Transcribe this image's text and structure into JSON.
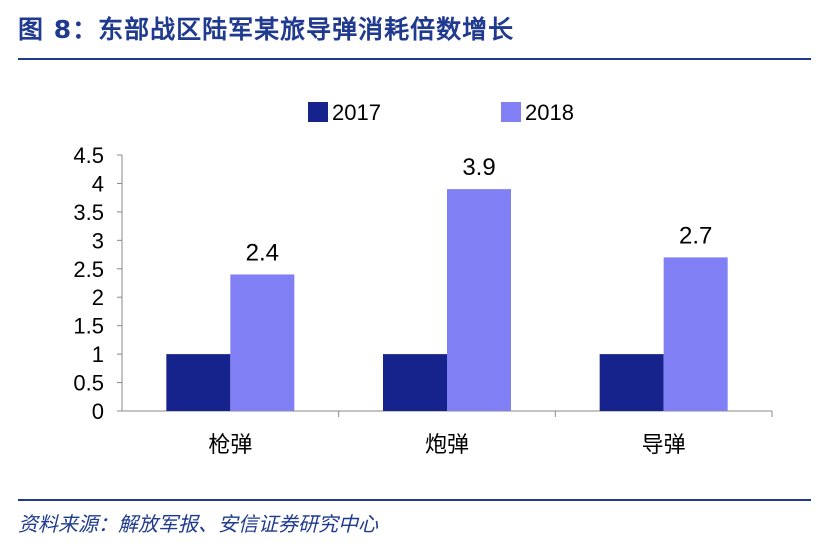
{
  "header": {
    "title": "图 8：东部战区陆军某旅导弹消耗倍数增长"
  },
  "footer": {
    "source": "资料来源：解放军报、安信证券研究中心"
  },
  "colors": {
    "accent": "#1f3a8f",
    "series_2017": "#16238c",
    "series_2018": "#8080f4"
  },
  "chart_data": {
    "type": "bar",
    "categories": [
      "枪弹",
      "炮弹",
      "导弹"
    ],
    "series": [
      {
        "name": "2017",
        "values": [
          1,
          1,
          1
        ]
      },
      {
        "name": "2018",
        "values": [
          2.4,
          3.9,
          2.7
        ]
      }
    ],
    "data_labels": {
      "2018": [
        "2.4",
        "3.9",
        "2.7"
      ]
    },
    "y_ticks": [
      "0",
      "0.5",
      "1",
      "1.5",
      "2",
      "2.5",
      "3",
      "3.5",
      "4",
      "4.5"
    ],
    "ylim": [
      0,
      4.5
    ],
    "grid": false,
    "legend_position": "top-center"
  }
}
